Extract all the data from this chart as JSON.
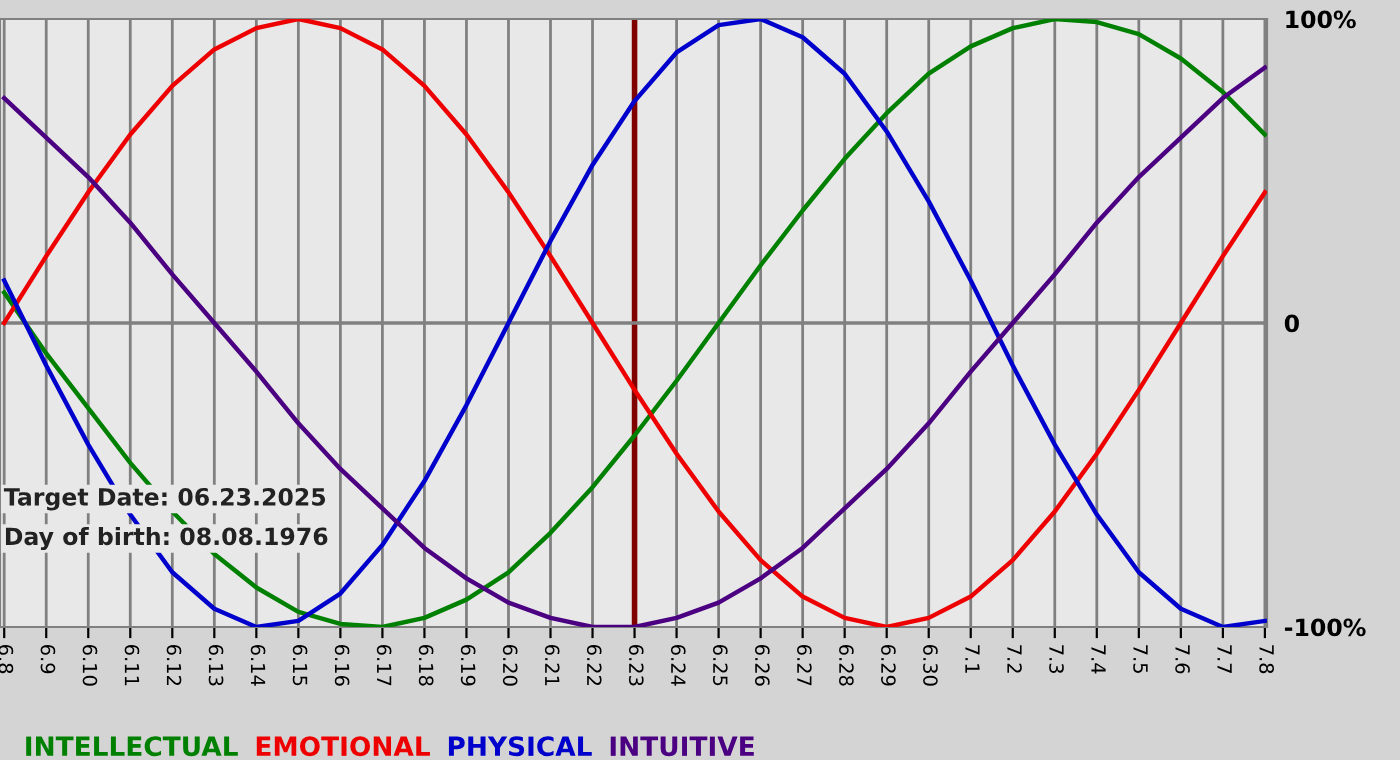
{
  "chart_data": {
    "type": "line",
    "categories": [
      "6.8",
      "6.9",
      "6.10",
      "6.11",
      "6.12",
      "6.13",
      "6.14",
      "6.15",
      "6.16",
      "6.17",
      "6.18",
      "6.19",
      "6.20",
      "6.21",
      "6.22",
      "6.23",
      "6.24",
      "6.25",
      "6.26",
      "6.27",
      "6.28",
      "6.29",
      "6.30",
      "7.1",
      "7.2",
      "7.3",
      "7.4",
      "7.5",
      "7.6",
      "7.7",
      "7.8"
    ],
    "series": [
      {
        "name": "INTELLECTUAL",
        "color": "#008000",
        "values": [
          10,
          -10,
          -28,
          -46,
          -62,
          -76,
          -87,
          -95,
          -99,
          -100,
          -97,
          -91,
          -82,
          -69,
          -54,
          -37,
          -19,
          0,
          19,
          37,
          54,
          69,
          82,
          91,
          97,
          100,
          99,
          95,
          87,
          76,
          62
        ]
      },
      {
        "name": "EMOTIONAL",
        "color": "#ee0000",
        "values": [
          0,
          22,
          43,
          62,
          78,
          90,
          97,
          100,
          97,
          90,
          78,
          62,
          43,
          22,
          0,
          -22,
          -43,
          -62,
          -78,
          -90,
          -97,
          -100,
          -97,
          -90,
          -78,
          -62,
          -43,
          -22,
          0,
          22,
          43
        ]
      },
      {
        "name": "PHYSICAL",
        "color": "#0000cc",
        "values": [
          14,
          -14,
          -40,
          -63,
          -82,
          -94,
          -100,
          -98,
          -89,
          -73,
          -52,
          -27,
          0,
          27,
          52,
          73,
          89,
          98,
          100,
          94,
          82,
          63,
          40,
          14,
          -14,
          -40,
          -63,
          -82,
          -94,
          -100,
          -98
        ]
      },
      {
        "name": "INTUITIVE",
        "color": "#4b0082",
        "values": [
          74,
          61,
          48,
          33,
          16,
          0,
          -16,
          -33,
          -48,
          -61,
          -74,
          -84,
          -92,
          -97,
          -100,
          -100,
          -97,
          -92,
          -84,
          -74,
          -61,
          -48,
          -33,
          -16,
          0,
          16,
          33,
          48,
          61,
          74,
          84
        ]
      }
    ],
    "ylim": [
      -100,
      100
    ],
    "yticks": [
      {
        "value": 100,
        "label": "100%"
      },
      0,
      {
        "value": -100,
        "label": "-100%"
      }
    ],
    "grid": "x",
    "legend": "bottom",
    "marker": "none",
    "line_style": "solid",
    "ref_lines": [
      {
        "axis": "x",
        "value": "6.23",
        "color": "#800000"
      },
      {
        "axis": "y",
        "value": 0,
        "color": "#808080"
      }
    ],
    "annotations": [
      "Target Date: 06.23.2025",
      "Day of birth: 08.08.1976"
    ]
  }
}
